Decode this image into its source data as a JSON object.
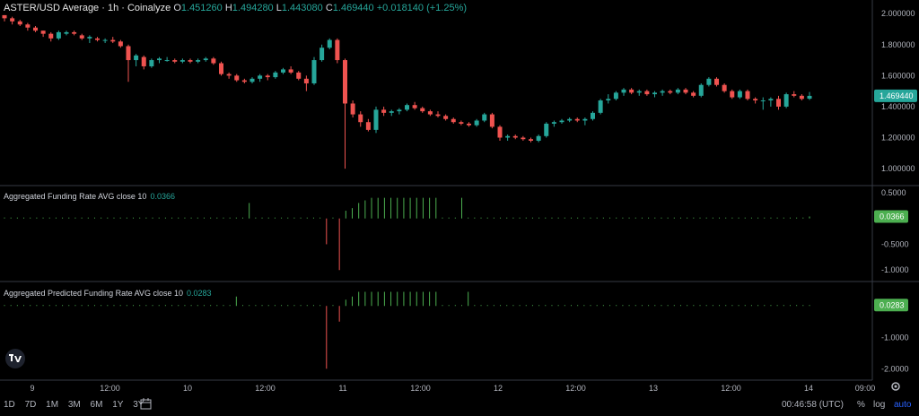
{
  "header": {
    "symbol": "ASTER/USD Average · 1h · Coinalyze",
    "o_label": "O",
    "o": "1.451260",
    "h_label": "H",
    "h": "1.494280",
    "l_label": "L",
    "l": "1.443080",
    "c_label": "C",
    "c": "1.469440",
    "change": "+0.018140 (+1.25%)"
  },
  "pane2": {
    "title": "Aggregated Funding Rate AVG close 10",
    "value": "0.0366"
  },
  "pane3": {
    "title": "Aggregated Predicted Funding Rate AVG close 10",
    "value": "0.0283"
  },
  "bottom": {
    "ranges": [
      "1D",
      "7D",
      "1M",
      "3M",
      "6M",
      "1Y",
      "3Y"
    ],
    "clock": "00:46:58 (UTC)",
    "percent": "%",
    "log": "log",
    "auto": "auto"
  },
  "colors": {
    "up": "#26a69a",
    "down": "#ef5350",
    "bg": "#000000",
    "grid": "#363a45",
    "funding": "#4caf50"
  },
  "chart_data": [
    {
      "type": "candlestick",
      "title": "ASTER/USD Average · 1h · Coinalyze",
      "x_ticks": [
        "9",
        "12:00",
        "10",
        "12:00",
        "11",
        "12:00",
        "12",
        "12:00",
        "13",
        "12:00",
        "14",
        "09:00"
      ],
      "y_ticks": [
        "2.000000",
        "1.800000",
        "1.600000",
        "1.400000",
        "1.200000",
        "1.000000"
      ],
      "ylim": [
        0.96,
        2.03
      ],
      "last_price": "1.469440",
      "ohlc": [
        [
          1.99,
          1.99,
          1.95,
          1.97
        ],
        [
          1.97,
          1.98,
          1.93,
          1.95
        ],
        [
          1.95,
          1.96,
          1.92,
          1.93
        ],
        [
          1.93,
          1.94,
          1.89,
          1.91
        ],
        [
          1.91,
          1.92,
          1.88,
          1.89
        ],
        [
          1.89,
          1.89,
          1.85,
          1.87
        ],
        [
          1.87,
          1.88,
          1.82,
          1.84
        ],
        [
          1.84,
          1.89,
          1.83,
          1.88
        ],
        [
          1.87,
          1.89,
          1.86,
          1.88
        ],
        [
          1.88,
          1.89,
          1.86,
          1.87
        ],
        [
          1.86,
          1.87,
          1.83,
          1.84
        ],
        [
          1.84,
          1.86,
          1.81,
          1.85
        ],
        [
          1.84,
          1.85,
          1.82,
          1.83
        ],
        [
          1.83,
          1.84,
          1.81,
          1.83
        ],
        [
          1.83,
          1.85,
          1.81,
          1.82
        ],
        [
          1.82,
          1.83,
          1.78,
          1.79
        ],
        [
          1.79,
          1.8,
          1.56,
          1.7
        ],
        [
          1.7,
          1.74,
          1.66,
          1.73
        ],
        [
          1.72,
          1.73,
          1.64,
          1.66
        ],
        [
          1.66,
          1.71,
          1.65,
          1.7
        ],
        [
          1.7,
          1.72,
          1.68,
          1.71
        ],
        [
          1.7,
          1.72,
          1.69,
          1.7
        ],
        [
          1.7,
          1.71,
          1.68,
          1.69
        ],
        [
          1.69,
          1.71,
          1.68,
          1.7
        ],
        [
          1.7,
          1.71,
          1.68,
          1.69
        ],
        [
          1.69,
          1.71,
          1.68,
          1.7
        ],
        [
          1.7,
          1.72,
          1.69,
          1.71
        ],
        [
          1.71,
          1.72,
          1.67,
          1.68
        ],
        [
          1.68,
          1.69,
          1.6,
          1.61
        ],
        [
          1.61,
          1.62,
          1.58,
          1.6
        ],
        [
          1.6,
          1.61,
          1.56,
          1.57
        ],
        [
          1.57,
          1.58,
          1.55,
          1.56
        ],
        [
          1.56,
          1.59,
          1.55,
          1.58
        ],
        [
          1.58,
          1.61,
          1.56,
          1.6
        ],
        [
          1.6,
          1.61,
          1.57,
          1.59
        ],
        [
          1.59,
          1.63,
          1.58,
          1.62
        ],
        [
          1.62,
          1.65,
          1.61,
          1.64
        ],
        [
          1.64,
          1.66,
          1.61,
          1.62
        ],
        [
          1.62,
          1.63,
          1.57,
          1.58
        ],
        [
          1.58,
          1.6,
          1.5,
          1.55
        ],
        [
          1.55,
          1.72,
          1.54,
          1.7
        ],
        [
          1.7,
          1.8,
          1.69,
          1.78
        ],
        [
          1.78,
          1.84,
          1.77,
          1.83
        ],
        [
          1.83,
          1.84,
          1.68,
          1.7
        ],
        [
          1.7,
          1.71,
          1.0,
          1.42
        ],
        [
          1.42,
          1.44,
          1.33,
          1.35
        ],
        [
          1.35,
          1.37,
          1.27,
          1.3
        ],
        [
          1.3,
          1.32,
          1.24,
          1.25
        ],
        [
          1.25,
          1.4,
          1.23,
          1.38
        ],
        [
          1.38,
          1.4,
          1.34,
          1.36
        ],
        [
          1.36,
          1.38,
          1.34,
          1.37
        ],
        [
          1.37,
          1.39,
          1.35,
          1.38
        ],
        [
          1.38,
          1.42,
          1.37,
          1.41
        ],
        [
          1.41,
          1.43,
          1.38,
          1.39
        ],
        [
          1.39,
          1.4,
          1.36,
          1.37
        ],
        [
          1.37,
          1.38,
          1.34,
          1.35
        ],
        [
          1.35,
          1.37,
          1.33,
          1.34
        ],
        [
          1.34,
          1.35,
          1.31,
          1.32
        ],
        [
          1.32,
          1.33,
          1.29,
          1.3
        ],
        [
          1.3,
          1.31,
          1.28,
          1.29
        ],
        [
          1.29,
          1.3,
          1.27,
          1.28
        ],
        [
          1.28,
          1.32,
          1.27,
          1.31
        ],
        [
          1.31,
          1.36,
          1.3,
          1.35
        ],
        [
          1.35,
          1.36,
          1.26,
          1.27
        ],
        [
          1.27,
          1.28,
          1.18,
          1.2
        ],
        [
          1.2,
          1.22,
          1.18,
          1.21
        ],
        [
          1.21,
          1.22,
          1.19,
          1.2
        ],
        [
          1.2,
          1.21,
          1.18,
          1.19
        ],
        [
          1.19,
          1.2,
          1.17,
          1.18
        ],
        [
          1.18,
          1.22,
          1.17,
          1.21
        ],
        [
          1.21,
          1.3,
          1.2,
          1.29
        ],
        [
          1.29,
          1.31,
          1.27,
          1.3
        ],
        [
          1.3,
          1.32,
          1.29,
          1.31
        ],
        [
          1.31,
          1.33,
          1.3,
          1.32
        ],
        [
          1.32,
          1.33,
          1.3,
          1.31
        ],
        [
          1.31,
          1.33,
          1.28,
          1.32
        ],
        [
          1.32,
          1.37,
          1.31,
          1.36
        ],
        [
          1.36,
          1.45,
          1.35,
          1.44
        ],
        [
          1.44,
          1.48,
          1.42,
          1.45
        ],
        [
          1.45,
          1.5,
          1.44,
          1.49
        ],
        [
          1.49,
          1.52,
          1.47,
          1.51
        ],
        [
          1.51,
          1.52,
          1.48,
          1.49
        ],
        [
          1.49,
          1.51,
          1.47,
          1.5
        ],
        [
          1.5,
          1.51,
          1.47,
          1.48
        ],
        [
          1.48,
          1.5,
          1.46,
          1.49
        ],
        [
          1.49,
          1.51,
          1.47,
          1.5
        ],
        [
          1.5,
          1.51,
          1.48,
          1.49
        ],
        [
          1.49,
          1.52,
          1.48,
          1.51
        ],
        [
          1.51,
          1.52,
          1.48,
          1.49
        ],
        [
          1.49,
          1.5,
          1.46,
          1.47
        ],
        [
          1.47,
          1.55,
          1.46,
          1.54
        ],
        [
          1.54,
          1.59,
          1.53,
          1.58
        ],
        [
          1.58,
          1.59,
          1.53,
          1.54
        ],
        [
          1.54,
          1.55,
          1.49,
          1.5
        ],
        [
          1.5,
          1.51,
          1.45,
          1.46
        ],
        [
          1.46,
          1.51,
          1.45,
          1.5
        ],
        [
          1.5,
          1.51,
          1.44,
          1.45
        ],
        [
          1.45,
          1.46,
          1.42,
          1.44
        ],
        [
          1.44,
          1.46,
          1.38,
          1.44
        ],
        [
          1.44,
          1.46,
          1.4,
          1.45
        ],
        [
          1.45,
          1.47,
          1.38,
          1.4
        ],
        [
          1.4,
          1.49,
          1.39,
          1.48
        ],
        [
          1.48,
          1.5,
          1.46,
          1.47
        ],
        [
          1.47,
          1.48,
          1.44,
          1.45
        ],
        [
          1.45126,
          1.49428,
          1.44308,
          1.46944
        ]
      ]
    },
    {
      "type": "bar",
      "title": "Aggregated Funding Rate AVG close 10",
      "y_ticks": [
        "0.5000",
        "-0.5000",
        "-1.0000"
      ],
      "ylim": [
        -1.1,
        0.55
      ],
      "last_value": "0.0366",
      "values": [
        0.01,
        0.01,
        0.01,
        0.01,
        0.01,
        0.01,
        0.01,
        0.01,
        0.01,
        0.01,
        0.01,
        0.01,
        0.01,
        0.01,
        0.01,
        0.01,
        0.01,
        0.01,
        0.01,
        0.01,
        0.01,
        0.01,
        0.01,
        0.01,
        0.01,
        0.01,
        0.01,
        0.01,
        0.01,
        0.01,
        0.01,
        0.01,
        0.01,
        0.01,
        0.01,
        0.01,
        0.01,
        0.01,
        0.3,
        0.01,
        0.01,
        0.01,
        0.01,
        0.01,
        0.01,
        0.01,
        0.01,
        0.01,
        0.01,
        0.01,
        -0.5,
        0.01,
        -1.0,
        0.15,
        0.2,
        0.3,
        0.35,
        0.4,
        0.4,
        0.4,
        0.4,
        0.4,
        0.4,
        0.4,
        0.4,
        0.4,
        0.4,
        0.4,
        0.01,
        0.01,
        0.01,
        0.4,
        0.01,
        0.01,
        0.01,
        0.01,
        0.01,
        0.01,
        0.01,
        0.01,
        0.01,
        0.01,
        0.01,
        0.01,
        0.01,
        0.01,
        0.01,
        0.01,
        0.01,
        0.01,
        0.01,
        0.01,
        0.01,
        0.01,
        0.01,
        0.01,
        0.01,
        0.01,
        0.01,
        0.01,
        0.01,
        0.01,
        0.01,
        0.01,
        0.01,
        0.01,
        0.01,
        0.01,
        0.01,
        0.01,
        0.01,
        0.01,
        0.01,
        0.01,
        0.01,
        0.01,
        0.01,
        0.01,
        0.01,
        0.01,
        0.01,
        0.01,
        0.01,
        0.01,
        0.01,
        0.0366
      ]
    },
    {
      "type": "bar",
      "title": "Aggregated Predicted Funding Rate AVG close 10",
      "y_ticks": [
        "-1.0000",
        "-2.0000"
      ],
      "ylim": [
        -2.05,
        0.55
      ],
      "last_value": "0.0283",
      "values": [
        0.01,
        0.01,
        0.01,
        0.01,
        0.01,
        0.01,
        0.01,
        0.01,
        0.01,
        0.01,
        0.01,
        0.01,
        0.01,
        0.01,
        0.01,
        0.01,
        0.01,
        0.01,
        0.01,
        0.01,
        0.01,
        0.01,
        0.01,
        0.01,
        0.01,
        0.01,
        0.01,
        0.01,
        0.01,
        0.01,
        0.01,
        0.01,
        0.01,
        0.01,
        0.01,
        0.01,
        0.3,
        0.01,
        0.01,
        0.01,
        0.01,
        0.01,
        0.01,
        0.01,
        0.01,
        0.01,
        0.01,
        0.01,
        0.01,
        0.01,
        -2.0,
        0.01,
        -0.5,
        0.2,
        0.3,
        0.45,
        0.45,
        0.45,
        0.45,
        0.45,
        0.45,
        0.45,
        0.45,
        0.45,
        0.45,
        0.45,
        0.45,
        0.45,
        0.01,
        0.01,
        0.01,
        0.01,
        0.45,
        0.01,
        0.01,
        0.01,
        0.01,
        0.01,
        0.01,
        0.01,
        0.01,
        0.01,
        0.01,
        0.01,
        0.01,
        0.01,
        0.01,
        0.01,
        0.01,
        0.01,
        0.01,
        0.01,
        0.01,
        0.01,
        0.01,
        0.01,
        0.01,
        0.01,
        0.01,
        0.01,
        0.01,
        0.01,
        0.01,
        0.01,
        0.01,
        0.01,
        0.01,
        0.01,
        0.01,
        0.01,
        0.01,
        0.01,
        0.01,
        0.01,
        0.01,
        0.01,
        0.01,
        0.01,
        0.01,
        0.01,
        0.01,
        0.01,
        0.01,
        0.01,
        0.01,
        0.0283
      ]
    }
  ]
}
